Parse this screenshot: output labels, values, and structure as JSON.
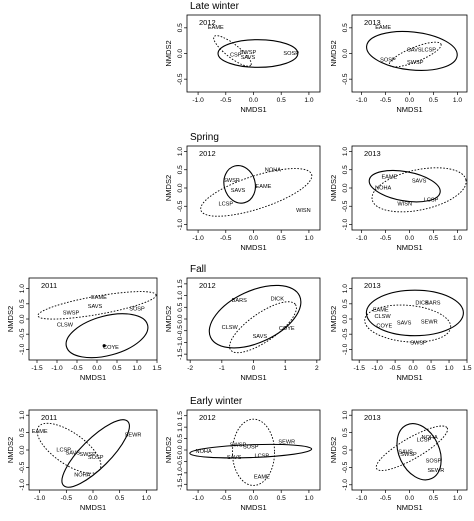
{
  "rows": [
    {
      "title": "Late winter"
    },
    {
      "title": "Spring"
    },
    {
      "title": "Fall"
    },
    {
      "title": "Early winter"
    }
  ],
  "chart_data": [
    {
      "type": "scatter",
      "season": "Late winter",
      "year": "2012",
      "xlabel": "NMDS1",
      "ylabel": "NMDS2",
      "xlim": [
        -1.2,
        1.2
      ],
      "ylim": [
        -0.75,
        0.75
      ],
      "xticks": [
        -1.0,
        -0.5,
        0.0,
        0.5,
        1.0
      ],
      "yticks": [
        -0.5,
        0.0,
        0.5
      ],
      "xtick_labels": [
        "-1.0",
        "-0.5",
        "0.0",
        "0.5",
        "1.0"
      ],
      "ytick_labels": [
        "-0.5",
        "0.0",
        "0.5"
      ],
      "labels": [
        {
          "text": "EAME",
          "x": -0.68,
          "y": 0.52
        },
        {
          "text": "SWSP",
          "x": -0.1,
          "y": 0.03
        },
        {
          "text": "CSP",
          "x": -0.32,
          "y": -0.02
        },
        {
          "text": "SAVS",
          "x": -0.1,
          "y": -0.07
        },
        {
          "text": "SOSP",
          "x": 0.68,
          "y": 0.01
        }
      ],
      "ellipses": [
        {
          "cx": 0.08,
          "cy": 0.0,
          "rx": 0.72,
          "ry": 0.27,
          "angle": 0,
          "style": "solid"
        },
        {
          "cx": -0.38,
          "cy": 0.05,
          "rx": 0.42,
          "ry": 0.13,
          "angle": -38,
          "style": "dotted"
        }
      ]
    },
    {
      "type": "scatter",
      "season": "Late winter",
      "year": "2013",
      "xlabel": "NMDS1",
      "ylabel": "NMDS2",
      "xlim": [
        -1.2,
        1.2
      ],
      "ylim": [
        -0.75,
        0.75
      ],
      "xticks": [
        -1.0,
        -0.5,
        0.0,
        0.5,
        1.0
      ],
      "yticks": [
        -0.5,
        0.0,
        0.5
      ],
      "xtick_labels": [
        "-1.0",
        "-0.5",
        "0.0",
        "0.5",
        "1.0"
      ],
      "ytick_labels": [
        "-0.5",
        "0.0",
        "0.5"
      ],
      "labels": [
        {
          "text": "EAME",
          "x": -0.55,
          "y": 0.52
        },
        {
          "text": "SAVS",
          "x": 0.1,
          "y": 0.08
        },
        {
          "text": "LCSP",
          "x": 0.4,
          "y": 0.08
        },
        {
          "text": "SOSP",
          "x": -0.45,
          "y": -0.12
        },
        {
          "text": "SWSP",
          "x": 0.12,
          "y": -0.17
        }
      ],
      "ellipses": [
        {
          "cx": 0.05,
          "cy": 0.05,
          "rx": 0.95,
          "ry": 0.37,
          "angle": -6,
          "style": "solid"
        },
        {
          "cx": 0.12,
          "cy": -0.02,
          "rx": 0.58,
          "ry": 0.14,
          "angle": 22,
          "style": "dotted"
        }
      ]
    },
    {
      "type": "scatter",
      "season": "Spring",
      "year": "2012",
      "xlabel": "NMDS1",
      "ylabel": "NMDS2",
      "xlim": [
        -1.2,
        1.2
      ],
      "ylim": [
        -1.15,
        1.15
      ],
      "xticks": [
        -1.0,
        -0.5,
        0.0,
        0.5,
        1.0
      ],
      "yticks": [
        -1.0,
        -0.5,
        0.0,
        0.5,
        1.0
      ],
      "xtick_labels": [
        "-1.0",
        "-0.5",
        "0.0",
        "0.5",
        "1.0"
      ],
      "ytick_labels": [
        "-1.0",
        "-0.5",
        "0.0",
        "0.5",
        "1.0"
      ],
      "labels": [
        {
          "text": "NOHA",
          "x": 0.35,
          "y": 0.5
        },
        {
          "text": "SWSP",
          "x": -0.4,
          "y": 0.22
        },
        {
          "text": "EAME",
          "x": 0.18,
          "y": 0.06
        },
        {
          "text": "SAVS",
          "x": -0.28,
          "y": -0.05
        },
        {
          "text": "LCSP",
          "x": -0.5,
          "y": -0.42
        },
        {
          "text": "WISN",
          "x": 0.9,
          "y": -0.6
        }
      ],
      "ellipses": [
        {
          "cx": -0.25,
          "cy": 0.1,
          "rx": 0.28,
          "ry": 0.52,
          "angle": 15,
          "style": "solid"
        },
        {
          "cx": 0.05,
          "cy": -0.12,
          "rx": 1.05,
          "ry": 0.45,
          "angle": 18,
          "style": "dotted"
        }
      ]
    },
    {
      "type": "scatter",
      "season": "Spring",
      "year": "2013",
      "xlabel": "NMDS1",
      "ylabel": "NMDS2",
      "xlim": [
        -1.2,
        1.2
      ],
      "ylim": [
        -1.15,
        1.15
      ],
      "xticks": [
        -1.0,
        -0.5,
        0.0,
        0.5,
        1.0
      ],
      "yticks": [
        -1.0,
        -0.5,
        0.0,
        0.5,
        1.0
      ],
      "xtick_labels": [
        "-1.0",
        "-0.5",
        "0.0",
        "0.5",
        "1.0"
      ],
      "ytick_labels": [
        "-1.0",
        "-0.5",
        "0.0",
        "0.5",
        "1.0"
      ],
      "labels": [
        {
          "text": "EAME",
          "x": -0.42,
          "y": 0.32
        },
        {
          "text": "SAVS",
          "x": 0.2,
          "y": 0.2
        },
        {
          "text": "NOHA",
          "x": -0.55,
          "y": 0.02
        },
        {
          "text": "LCSP",
          "x": 0.45,
          "y": -0.32
        },
        {
          "text": "WISN",
          "x": -0.1,
          "y": -0.42
        }
      ],
      "ellipses": [
        {
          "cx": -0.1,
          "cy": 0.05,
          "rx": 0.75,
          "ry": 0.4,
          "angle": -10,
          "style": "solid"
        },
        {
          "cx": 0.2,
          "cy": -0.05,
          "rx": 1.0,
          "ry": 0.55,
          "angle": 12,
          "style": "dotted"
        }
      ]
    },
    {
      "type": "scatter",
      "season": "Fall",
      "year": "2011",
      "xlabel": "NMDS1",
      "ylabel": "NMDS2",
      "xlim": [
        -1.7,
        1.5
      ],
      "ylim": [
        -1.35,
        1.35
      ],
      "xticks": [
        -1.5,
        -1.0,
        -0.5,
        0.0,
        0.5,
        1.0,
        1.5
      ],
      "yticks": [
        -1.0,
        -0.5,
        0.0,
        0.5,
        1.0
      ],
      "xtick_labels": [
        "-1.5",
        "-1.0",
        "-0.5",
        "0.0",
        "0.5",
        "1.0",
        "1.5"
      ],
      "ytick_labels": [
        "-1.0",
        "-0.5",
        "0.0",
        "0.5",
        "1.0"
      ],
      "labels": [
        {
          "text": "EAME",
          "x": 0.05,
          "y": 0.72
        },
        {
          "text": "SAVS",
          "x": -0.05,
          "y": 0.42
        },
        {
          "text": "SWSP",
          "x": -0.65,
          "y": 0.22
        },
        {
          "text": "SOSP",
          "x": 1.0,
          "y": 0.35
        },
        {
          "text": "CLSW",
          "x": -0.8,
          "y": -0.18
        },
        {
          "text": "COYE",
          "x": 0.35,
          "y": -0.92
        }
      ],
      "ellipses": [
        {
          "cx": 0.0,
          "cy": 0.45,
          "rx": 1.5,
          "ry": 0.3,
          "angle": 10,
          "style": "dotted"
        },
        {
          "cx": 0.25,
          "cy": -0.55,
          "rx": 1.05,
          "ry": 0.65,
          "angle": 15,
          "style": "solid"
        }
      ],
      "points": [
        {
          "x": 0.18,
          "y": -0.88
        }
      ]
    },
    {
      "type": "scatter",
      "season": "Fall",
      "year": "2012",
      "xlabel": "NMDS1",
      "ylabel": "NMDS2",
      "xlim": [
        -2.1,
        2.1
      ],
      "ylim": [
        -1.75,
        1.75
      ],
      "xticks": [
        -2,
        -1,
        0,
        1,
        2
      ],
      "yticks": [
        -1.5,
        -1.0,
        -0.5,
        0.0,
        0.5,
        1.0,
        1.5
      ],
      "xtick_labels": [
        "-2",
        "-1",
        "0",
        "1",
        "2"
      ],
      "ytick_labels": [
        "-1.5",
        "-1.0",
        "-0.5",
        "0.0",
        "0.5",
        "1.0",
        "1.5"
      ],
      "labels": [
        {
          "text": "BARS",
          "x": -0.45,
          "y": 0.82
        },
        {
          "text": "DICK",
          "x": 0.75,
          "y": 0.88
        },
        {
          "text": "CLSW",
          "x": -0.75,
          "y": -0.35
        },
        {
          "text": "COYE",
          "x": 1.05,
          "y": -0.38
        },
        {
          "text": "SAVS",
          "x": 0.2,
          "y": -0.72
        }
      ],
      "ellipses": [
        {
          "cx": 0.05,
          "cy": 0.1,
          "rx": 1.55,
          "ry": 1.1,
          "angle": 25,
          "style": "solid"
        },
        {
          "cx": 0.3,
          "cy": -0.35,
          "rx": 1.25,
          "ry": 0.6,
          "angle": 35,
          "style": "dotted"
        }
      ]
    },
    {
      "type": "scatter",
      "season": "Fall",
      "year": "2013",
      "xlabel": "NMDS1",
      "ylabel": "NMDS2",
      "xlim": [
        -1.7,
        1.5
      ],
      "ylim": [
        -1.35,
        1.35
      ],
      "xticks": [
        -1.5,
        -1.0,
        -0.5,
        0.0,
        0.5,
        1.0,
        1.5
      ],
      "yticks": [
        -1.0,
        -0.5,
        0.0,
        0.5,
        1.0
      ],
      "xtick_labels": [
        "-1.5",
        "-1.0",
        "-0.5",
        "0.0",
        "0.5",
        "1.0",
        "1.5"
      ],
      "ytick_labels": [
        "-1.0",
        "-0.5",
        "0.0",
        "0.5",
        "1.0"
      ],
      "labels": [
        {
          "text": "DICK",
          "x": 0.25,
          "y": 0.55
        },
        {
          "text": "BARS",
          "x": 0.55,
          "y": 0.55
        },
        {
          "text": "EAME",
          "x": -0.9,
          "y": 0.32
        },
        {
          "text": "CLSW",
          "x": -0.85,
          "y": 0.1
        },
        {
          "text": "SEWR",
          "x": 0.45,
          "y": -0.08
        },
        {
          "text": "SAVS",
          "x": -0.25,
          "y": -0.12
        },
        {
          "text": "COYE",
          "x": -0.8,
          "y": -0.22
        },
        {
          "text": "SWSP",
          "x": 0.15,
          "y": -0.78
        }
      ],
      "ellipses": [
        {
          "cx": 0.05,
          "cy": 0.2,
          "rx": 1.35,
          "ry": 0.75,
          "angle": 0,
          "style": "solid"
        },
        {
          "cx": -0.15,
          "cy": -0.15,
          "rx": 1.2,
          "ry": 0.6,
          "angle": -5,
          "style": "dotted"
        }
      ]
    },
    {
      "type": "scatter",
      "season": "Early winter",
      "year": "2011",
      "xlabel": "NMDS1",
      "ylabel": "NMDS2",
      "xlim": [
        -1.2,
        1.2
      ],
      "ylim": [
        -1.15,
        1.15
      ],
      "xticks": [
        -1.0,
        -0.5,
        0.0,
        0.5,
        1.0
      ],
      "yticks": [
        -1.0,
        -0.5,
        0.0,
        0.5,
        1.0
      ],
      "xtick_labels": [
        "-1.0",
        "-0.5",
        "0.0",
        "0.5",
        "1.0"
      ],
      "ytick_labels": [
        "-1.0",
        "-0.5",
        "0.0",
        "0.5",
        "1.0"
      ],
      "labels": [
        {
          "text": "EAME",
          "x": -1.0,
          "y": 0.55
        },
        {
          "text": "SEWR",
          "x": 0.75,
          "y": 0.45
        },
        {
          "text": "LCSP",
          "x": -0.55,
          "y": 0.02
        },
        {
          "text": "SAVS",
          "x": -0.38,
          "y": -0.07
        },
        {
          "text": "SWSP",
          "x": -0.1,
          "y": -0.12
        },
        {
          "text": "SOSP",
          "x": 0.05,
          "y": -0.2
        },
        {
          "text": "NOHA",
          "x": -0.2,
          "y": -0.7
        }
      ],
      "ellipses": [
        {
          "cx": 0.05,
          "cy": -0.1,
          "rx": 0.85,
          "ry": 0.42,
          "angle": 45,
          "style": "solid"
        },
        {
          "cx": -0.45,
          "cy": 0.05,
          "rx": 0.7,
          "ry": 0.45,
          "angle": -35,
          "style": "dotted"
        }
      ]
    },
    {
      "type": "scatter",
      "season": "Early winter",
      "year": "2012",
      "xlabel": "NMDS1",
      "ylabel": "NMDS2",
      "xlim": [
        -1.2,
        1.2
      ],
      "ylim": [
        -1.75,
        1.75
      ],
      "xticks": [
        -1.0,
        -0.5,
        0.0,
        0.5,
        1.0
      ],
      "yticks": [
        -1.5,
        -1.0,
        -0.5,
        0.0,
        0.5,
        1.0,
        1.5
      ],
      "xtick_labels": [
        "-1.0",
        "-0.5",
        "0.0",
        "0.5",
        "1.0"
      ],
      "ytick_labels": [
        "-1.5",
        "-1.0",
        "-0.5",
        "0.0",
        "0.5",
        "1.0",
        "1.5"
      ],
      "labels": [
        {
          "text": "SEWR",
          "x": 0.6,
          "y": 0.38
        },
        {
          "text": "SWSP",
          "x": -0.28,
          "y": 0.25
        },
        {
          "text": "SOSP",
          "x": -0.05,
          "y": 0.16
        },
        {
          "text": "NOHA",
          "x": -0.9,
          "y": -0.05
        },
        {
          "text": "SAVS",
          "x": -0.35,
          "y": -0.3
        },
        {
          "text": "LCSP",
          "x": 0.15,
          "y": -0.25
        },
        {
          "text": "EAME",
          "x": 0.15,
          "y": -1.15
        }
      ],
      "ellipses": [
        {
          "cx": -0.05,
          "cy": -0.05,
          "rx": 1.1,
          "ry": 0.28,
          "angle": 2,
          "style": "solid"
        },
        {
          "cx": 0.0,
          "cy": -0.1,
          "rx": 0.38,
          "ry": 1.45,
          "angle": 0,
          "style": "dotted"
        }
      ]
    },
    {
      "type": "scatter",
      "season": "Early winter",
      "year": "2013",
      "xlabel": "NMDS1",
      "ylabel": "NMDS2",
      "xlim": [
        -1.2,
        1.2
      ],
      "ylim": [
        -1.15,
        1.15
      ],
      "xticks": [
        -1.0,
        -0.5,
        0.0,
        0.5,
        1.0
      ],
      "yticks": [
        -1.0,
        -0.5,
        0.0,
        0.5,
        1.0
      ],
      "xtick_labels": [
        "-1.0",
        "-0.5",
        "0.0",
        "0.5",
        "1.0"
      ],
      "ytick_labels": [
        "-1.0",
        "-0.5",
        "0.0",
        "0.5",
        "1.0"
      ],
      "labels": [
        {
          "text": "NOHA",
          "x": 0.42,
          "y": 0.38
        },
        {
          "text": "LCSP",
          "x": 0.3,
          "y": 0.3
        },
        {
          "text": "SAVS",
          "x": -0.08,
          "y": -0.05
        },
        {
          "text": "SWSP",
          "x": -0.02,
          "y": -0.12
        },
        {
          "text": "SOSP",
          "x": 0.5,
          "y": -0.3
        },
        {
          "text": "SEWR",
          "x": 0.55,
          "y": -0.58
        }
      ],
      "ellipses": [
        {
          "cx": 0.2,
          "cy": -0.05,
          "rx": 0.42,
          "ry": 0.85,
          "angle": 25,
          "style": "solid"
        },
        {
          "cx": 0.05,
          "cy": 0.05,
          "rx": 0.85,
          "ry": 0.3,
          "angle": 30,
          "style": "dotted"
        }
      ]
    }
  ]
}
